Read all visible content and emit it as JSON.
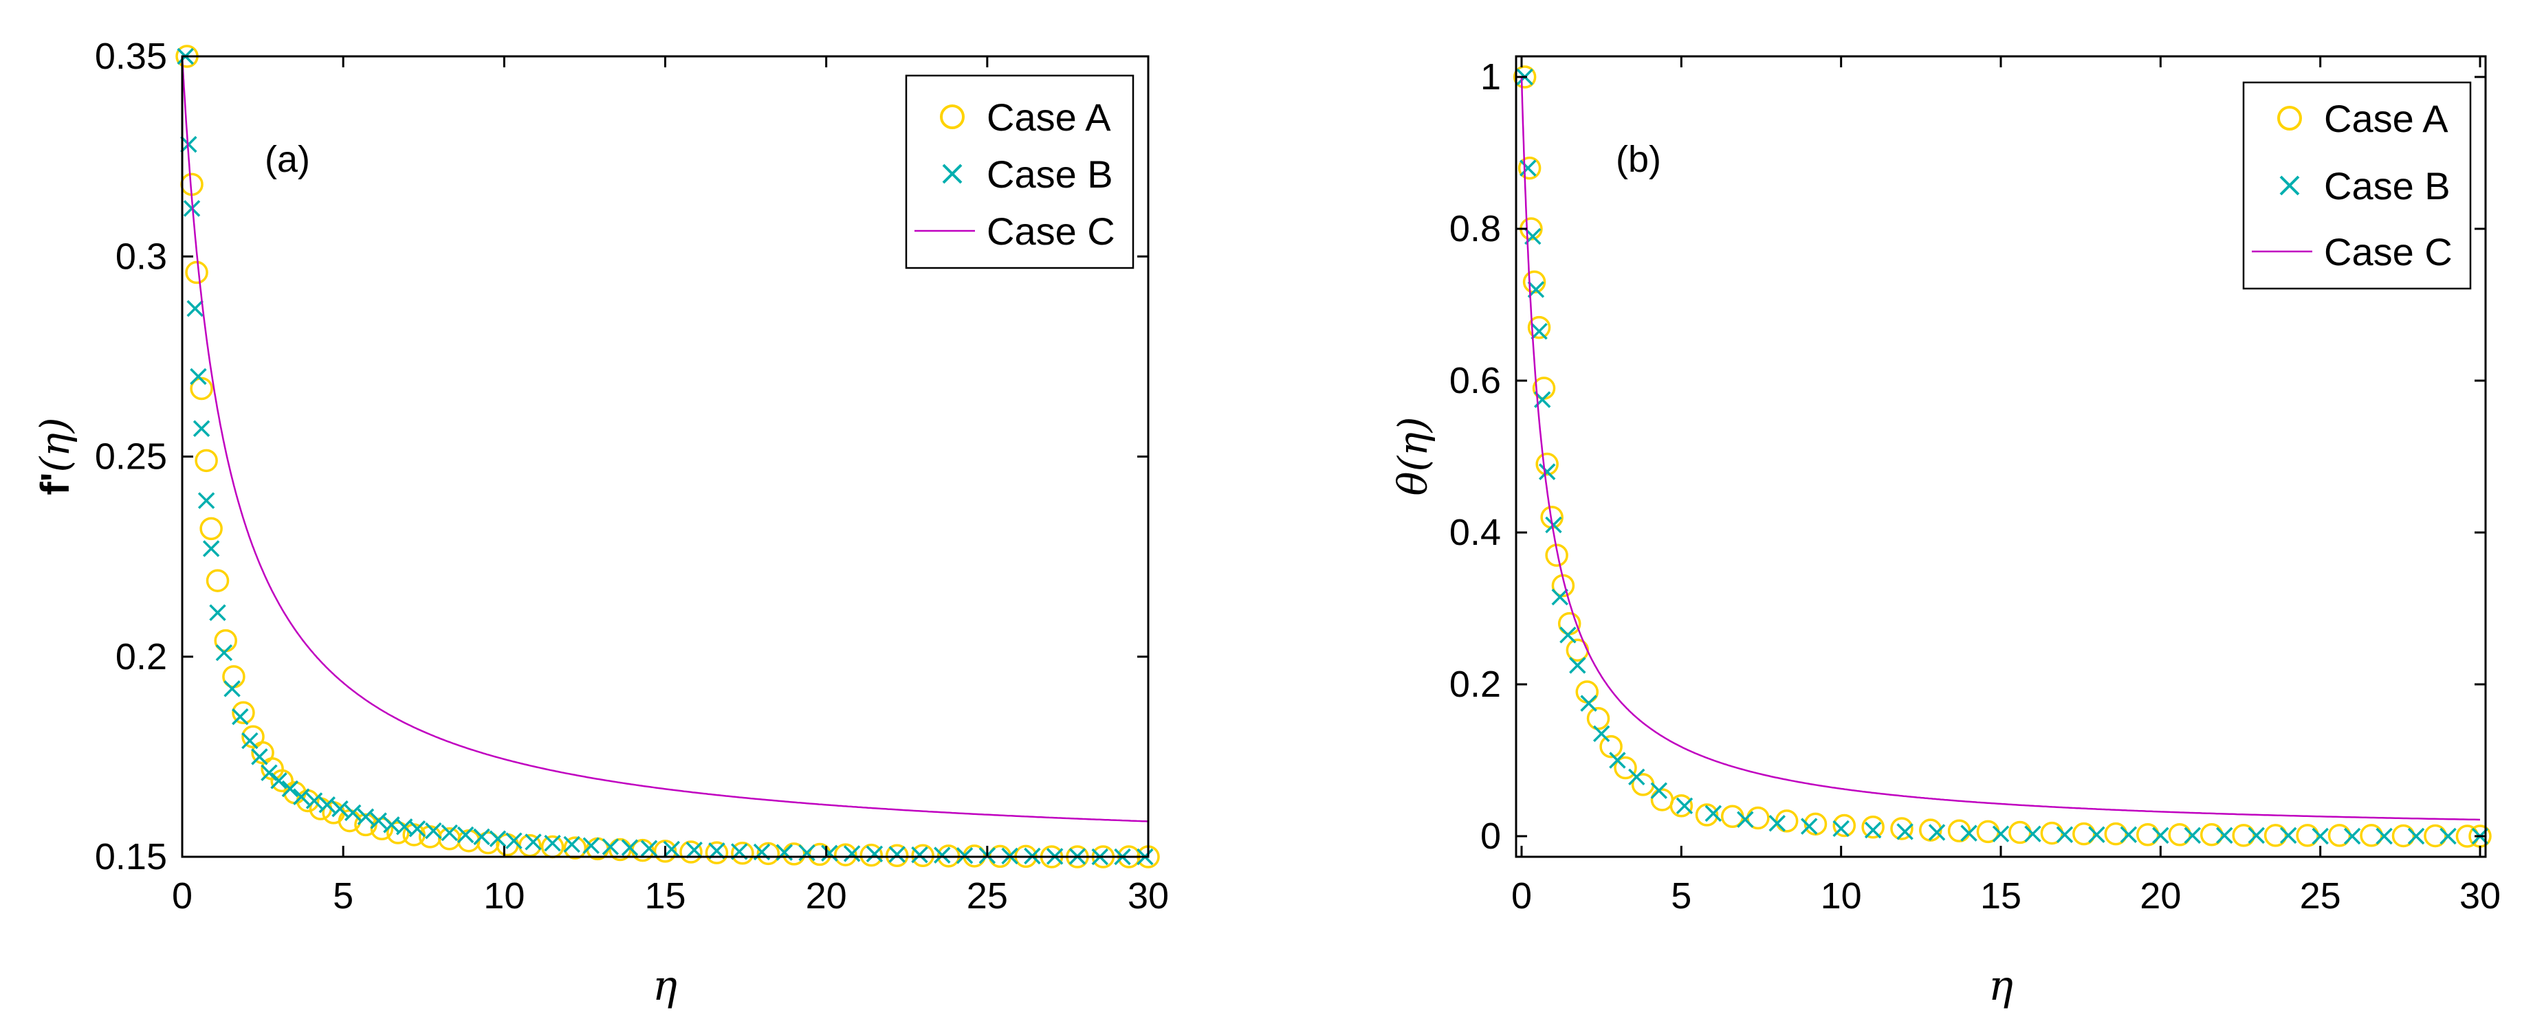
{
  "chart_data": [
    {
      "type": "scatter",
      "panel_label": "(a)",
      "xlabel": "η",
      "ylabel_prefix": "f'",
      "ylabel_var": "(η)",
      "xlim": [
        0,
        30
      ],
      "ylim": [
        0.15,
        0.35
      ],
      "xticks": [
        0,
        5,
        10,
        15,
        20,
        25,
        30
      ],
      "yticks": [
        0.15,
        0.2,
        0.25,
        0.3,
        0.35
      ],
      "ytick_labels": [
        "0.15",
        "0.2",
        "0.25",
        "0.3",
        "0.35"
      ],
      "legend_position": "top-right",
      "series": [
        {
          "name": "Case A",
          "marker": "circle",
          "color": "#FFD300",
          "x": [
            0.15,
            0.3,
            0.45,
            0.6,
            0.75,
            0.9,
            1.1,
            1.35,
            1.6,
            1.9,
            2.2,
            2.5,
            2.8,
            3.1,
            3.5,
            3.9,
            4.3,
            4.7,
            5.2,
            5.7,
            6.2,
            6.7,
            7.2,
            7.7,
            8.3,
            8.9,
            9.5,
            10.1,
            10.8,
            11.5,
            12.2,
            12.9,
            13.6,
            14.3,
            15.0,
            15.8,
            16.6,
            17.4,
            18.2,
            19.0,
            19.8,
            20.6,
            21.4,
            22.2,
            23.0,
            23.8,
            24.6,
            25.4,
            26.2,
            27.0,
            27.8,
            28.6,
            29.4,
            30.0
          ],
          "y": [
            0.35,
            0.318,
            0.296,
            0.267,
            0.249,
            0.232,
            0.219,
            0.204,
            0.195,
            0.186,
            0.18,
            0.176,
            0.172,
            0.169,
            0.166,
            0.164,
            0.162,
            0.161,
            0.159,
            0.158,
            0.157,
            0.156,
            0.1555,
            0.155,
            0.1545,
            0.154,
            0.1535,
            0.153,
            0.1528,
            0.1525,
            0.1522,
            0.152,
            0.1518,
            0.1516,
            0.1514,
            0.1512,
            0.151,
            0.1509,
            0.1508,
            0.1507,
            0.1506,
            0.1505,
            0.1504,
            0.1503,
            0.1503,
            0.1502,
            0.1502,
            0.1501,
            0.1501,
            0.15,
            0.15,
            0.15,
            0.15,
            0.15
          ]
        },
        {
          "name": "Case B",
          "marker": "x",
          "color": "#00AFAF",
          "x": [
            0.1,
            0.2,
            0.3,
            0.4,
            0.5,
            0.6,
            0.75,
            0.9,
            1.1,
            1.3,
            1.55,
            1.8,
            2.1,
            2.4,
            2.7,
            3.0,
            3.35,
            3.7,
            4.1,
            4.5,
            4.9,
            5.3,
            5.7,
            6.1,
            6.5,
            6.9,
            7.3,
            7.8,
            8.3,
            8.8,
            9.3,
            9.8,
            10.3,
            10.9,
            11.5,
            12.1,
            12.7,
            13.3,
            13.9,
            14.5,
            15.2,
            15.9,
            16.6,
            17.3,
            18.0,
            18.7,
            19.4,
            20.1,
            20.8,
            21.5,
            22.2,
            22.9,
            23.6,
            24.3,
            25.0,
            25.7,
            26.4,
            27.1,
            27.8,
            28.5,
            29.2,
            29.9
          ],
          "y": [
            0.35,
            0.328,
            0.312,
            0.287,
            0.27,
            0.257,
            0.239,
            0.227,
            0.211,
            0.201,
            0.192,
            0.185,
            0.179,
            0.175,
            0.171,
            0.169,
            0.167,
            0.165,
            0.164,
            0.163,
            0.162,
            0.161,
            0.16,
            0.159,
            0.158,
            0.1575,
            0.157,
            0.1565,
            0.156,
            0.1555,
            0.155,
            0.1545,
            0.154,
            0.1537,
            0.1534,
            0.1531,
            0.1528,
            0.1525,
            0.1523,
            0.1521,
            0.1519,
            0.1517,
            0.1515,
            0.1513,
            0.1512,
            0.1511,
            0.151,
            0.1509,
            0.1508,
            0.1507,
            0.1506,
            0.1505,
            0.1504,
            0.1503,
            0.1503,
            0.1502,
            0.1502,
            0.1501,
            0.1501,
            0.15,
            0.15,
            0.15
          ]
        },
        {
          "name": "Case C",
          "marker": "line",
          "color": "#C000C0",
          "model": {
            "offset": 0.15,
            "amplitude": 0.2,
            "k": 0.72
          }
        }
      ]
    },
    {
      "type": "scatter",
      "panel_label": "(b)",
      "xlabel": "η",
      "ylabel_prefix": "θ",
      "ylabel_var": "(η)",
      "xlim": [
        0,
        30
      ],
      "ylim": [
        0,
        1
      ],
      "xticks": [
        0,
        5,
        10,
        15,
        20,
        25,
        30
      ],
      "yticks": [
        0,
        0.2,
        0.4,
        0.6,
        0.8,
        1
      ],
      "ytick_labels": [
        "0",
        "0.2",
        "0.4",
        "0.6",
        "0.8",
        "1"
      ],
      "legend_position": "top-right",
      "series": [
        {
          "name": "Case A",
          "marker": "circle",
          "color": "#FFD300",
          "x": [
            0.1,
            0.25,
            0.3,
            0.4,
            0.55,
            0.7,
            0.8,
            0.95,
            1.1,
            1.3,
            1.5,
            1.75,
            2.05,
            2.4,
            2.8,
            3.25,
            3.8,
            4.4,
            5.0,
            5.8,
            6.6,
            7.4,
            8.3,
            9.2,
            10.1,
            11.0,
            11.9,
            12.8,
            13.7,
            14.6,
            15.6,
            16.6,
            17.6,
            18.6,
            19.6,
            20.6,
            21.6,
            22.6,
            23.6,
            24.6,
            25.6,
            26.6,
            27.6,
            28.6,
            29.6,
            30.0
          ],
          "y": [
            1.0,
            0.88,
            0.8,
            0.73,
            0.67,
            0.59,
            0.49,
            0.42,
            0.37,
            0.33,
            0.28,
            0.245,
            0.19,
            0.155,
            0.118,
            0.09,
            0.068,
            0.048,
            0.04,
            0.028,
            0.026,
            0.024,
            0.02,
            0.016,
            0.014,
            0.012,
            0.01,
            0.008,
            0.007,
            0.006,
            0.005,
            0.004,
            0.003,
            0.003,
            0.002,
            0.002,
            0.002,
            0.001,
            0.001,
            0.001,
            0.001,
            0.001,
            0.0005,
            0.0005,
            0.0,
            0.0
          ]
        },
        {
          "name": "Case B",
          "marker": "x",
          "color": "#00AFAF",
          "x": [
            0.1,
            0.2,
            0.35,
            0.45,
            0.55,
            0.65,
            0.8,
            1.0,
            1.2,
            1.45,
            1.75,
            2.1,
            2.5,
            3.0,
            3.6,
            4.3,
            5.1,
            6.0,
            7.0,
            8.0,
            9.0,
            10.0,
            11.0,
            12.0,
            13.0,
            14.0,
            15.0,
            16.0,
            17.0,
            18.0,
            19.0,
            20.0,
            21.0,
            22.0,
            23.0,
            24.0,
            25.0,
            26.0,
            27.0,
            28.0,
            29.0,
            30.0
          ],
          "y": [
            1.0,
            0.88,
            0.79,
            0.72,
            0.665,
            0.575,
            0.48,
            0.41,
            0.315,
            0.265,
            0.225,
            0.175,
            0.135,
            0.1,
            0.078,
            0.06,
            0.04,
            0.03,
            0.022,
            0.017,
            0.013,
            0.01,
            0.008,
            0.006,
            0.005,
            0.004,
            0.003,
            0.003,
            0.002,
            0.002,
            0.002,
            0.001,
            0.001,
            0.001,
            0.001,
            0.001,
            0.0,
            0.0,
            0.0,
            0.0,
            0.0,
            0.0
          ]
        },
        {
          "name": "Case C",
          "marker": "line",
          "color": "#C000C0",
          "model": {
            "offset": 0,
            "amplitude": 1,
            "k": 1.5
          }
        }
      ]
    }
  ]
}
